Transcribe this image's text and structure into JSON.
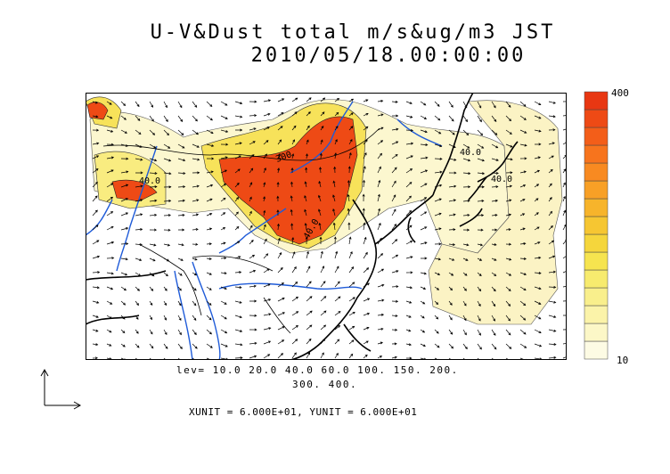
{
  "title_line1": "U-V&Dust total m/s&ug/m3 JST",
  "title_line2": "2010/05/18.00:00:00",
  "contour_labels": [
    "40.0",
    "40.0",
    "40.0",
    "300",
    "40.0"
  ],
  "colorbar": {
    "max_label": "400",
    "min_label": "10",
    "colors": [
      "#fdfbe4",
      "#fcf7c7",
      "#fbf3a9",
      "#f9ef8c",
      "#f7eb6e",
      "#f6e44f",
      "#f5d63c",
      "#f6c632",
      "#f7b42b",
      "#f8a026",
      "#f88a21",
      "#f7741d",
      "#f35e19",
      "#ee4a15",
      "#e83712"
    ]
  },
  "legend_levels_line1": "lev= 10.0 20.0 40.0 60.0 100. 150. 200.",
  "legend_levels_line2": "300. 400.",
  "units_text": "XUNIT = 6.000E+01, YUNIT = 6.000E+01",
  "colors": {
    "coast": "#000000",
    "rivers": "#1f5bd8",
    "high_dust": "#ee4a15",
    "mid_dust": "#f7e46a",
    "low_dust": "#fbf3c0"
  }
}
